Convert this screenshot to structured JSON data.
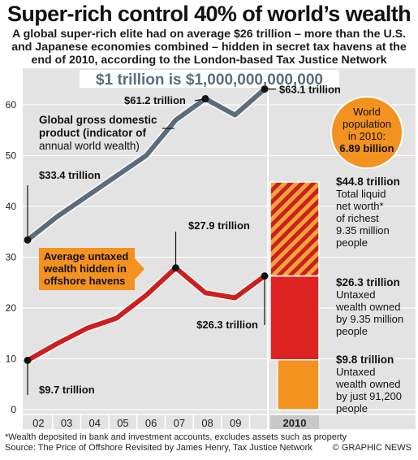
{
  "header": {
    "title": "Super-rich control 40% of world’s wealth",
    "subtitle": "A global super-rich elite had on average $26 trillion – more than the U.S. and Japanese economies combined – hidden in secret tax havens at the end of 2010, according to the London-based Tax Justice Network",
    "banner": "$1 trillion is $1,000,000,000,000"
  },
  "chart_data": {
    "type": "line",
    "x": [
      "02",
      "03",
      "04",
      "05",
      "06",
      "07",
      "08",
      "09",
      "10"
    ],
    "xlabel_highlight": "2010",
    "ylim": [
      0,
      70
    ],
    "yticks": [
      0,
      10,
      20,
      30,
      40,
      50,
      60
    ],
    "grid": true,
    "series": [
      {
        "name": "Global gross domestic product (indicator of annual world wealth)",
        "values": [
          33.4,
          38,
          42,
          46,
          50,
          57,
          61.2,
          58,
          63.1
        ],
        "color": "#5b6d7d"
      },
      {
        "name": "Average untaxed wealth hidden in offshore havens",
        "values": [
          9.7,
          13,
          16,
          18,
          22.5,
          27.9,
          23,
          22,
          26.3
        ],
        "color": "#cc1f1f"
      }
    ],
    "annotations": [
      {
        "text": "$33.4 trillion",
        "series": 0,
        "index": 0
      },
      {
        "text": "$61.2 trillion",
        "series": 0,
        "index": 6
      },
      {
        "text": "$63.1 trillion",
        "series": 0,
        "index": 8
      },
      {
        "text": "$9.7 trillion",
        "series": 1,
        "index": 0
      },
      {
        "text": "$27.9 trillion",
        "series": 1,
        "index": 5
      },
      {
        "text": "$26.3 trillion",
        "series": 1,
        "index": 8
      }
    ],
    "gdp_label": [
      "Global gross domestic",
      "product (indicator of",
      "annual world wealth)"
    ],
    "offshore_label": [
      "Average untaxed",
      "wealth hidden in",
      "offshore havens"
    ],
    "stack_2010": [
      {
        "value_label": "$44.8 trillion",
        "top": 44.8,
        "bottom": 26.3,
        "desc": [
          "Total liquid",
          "net worth*",
          "of richest",
          "9.35 million",
          "people"
        ]
      },
      {
        "value_label": "$26.3 trillion",
        "top": 26.3,
        "bottom": 9.8,
        "desc": [
          "Untaxed",
          "wealth owned",
          "by 9.35 million",
          "people"
        ]
      },
      {
        "value_label": "$9.8 trillion",
        "top": 9.8,
        "bottom": 0,
        "desc": [
          "Untaxed",
          "wealth owned",
          "by just 91,200",
          "people"
        ]
      }
    ],
    "population_circle": [
      "World",
      "population",
      "in 2010:",
      "6.89 billion"
    ]
  },
  "footer": {
    "footnote": "*Wealth deposited in bank and investment accounts, excludes assets such as property",
    "source": "Source: The Price of Offshore Revisited by James Henry, Tax Justice Network",
    "credit": "© GRAPHIC NEWS"
  },
  "colors": {
    "panel": "#e3e3e3",
    "gdp": "#5b6d7d",
    "offshore": "#cc1f1f",
    "orange": "#f4921f",
    "banner": "#5b6d7d"
  }
}
